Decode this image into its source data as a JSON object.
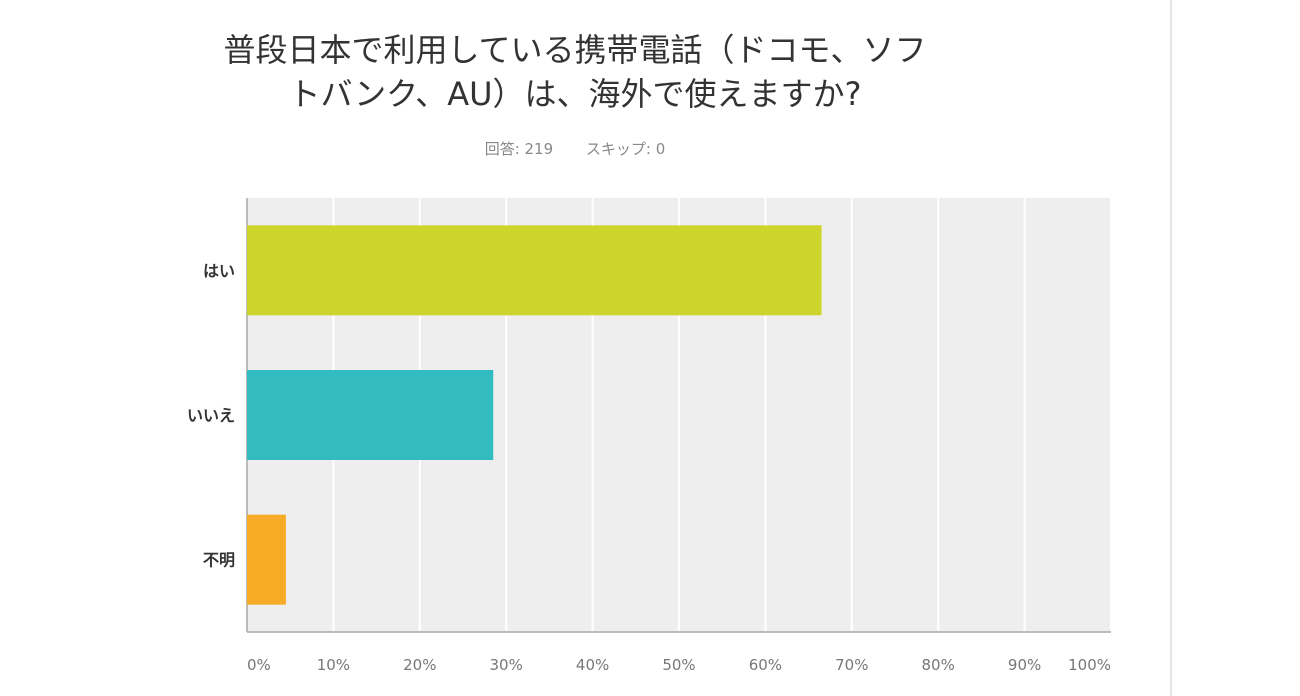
{
  "title_lines": [
    "普段日本で利用している携帯電話（ドコモ、ソフ",
    "トバンク、AU）は、海外で使えますか?"
  ],
  "stats": {
    "answered": "回答: 219",
    "skipped": "スキップ: 0"
  },
  "chart_data": {
    "type": "bar",
    "orientation": "horizontal",
    "title": "普段日本で利用している携帯電話（ドコモ、ソフトバンク、AU）は、海外で使えますか?",
    "categories": [
      "はい",
      "いいえ",
      "不明"
    ],
    "values": [
      66.5,
      28.5,
      4.5
    ],
    "colors": [
      "#cdd42b",
      "#32bcc0",
      "#f6ac26"
    ],
    "xlim": [
      0,
      100
    ],
    "x_ticks": [
      "0%",
      "10%",
      "20%",
      "30%",
      "40%",
      "50%",
      "60%",
      "70%",
      "80%",
      "90%",
      "100%"
    ],
    "grid": true,
    "plot_background": "#eeeeee"
  }
}
